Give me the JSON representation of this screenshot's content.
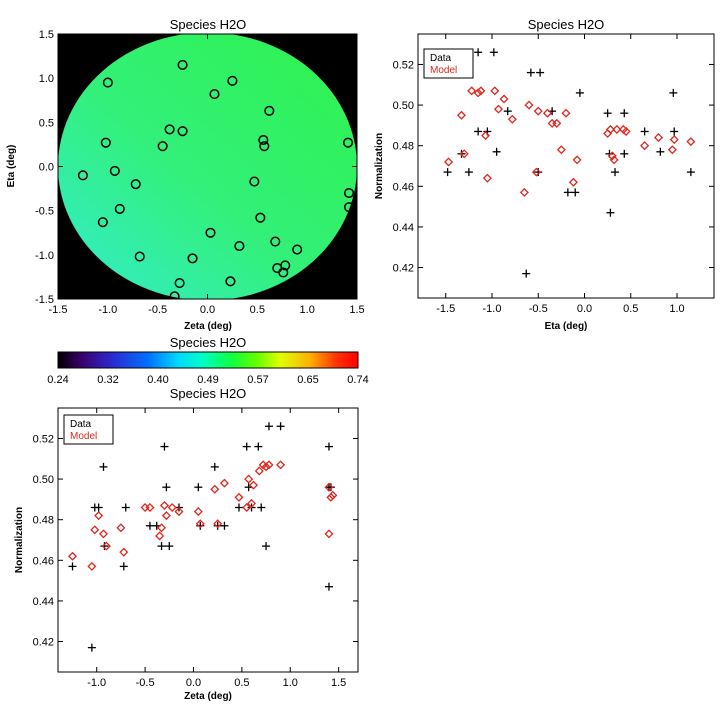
{
  "chart_data": [
    {
      "type": "heatmap",
      "title": "Species H2O",
      "xlabel": "Zeta (deg)",
      "ylabel": "Eta (deg)",
      "xlim": [
        -1.5,
        1.5
      ],
      "ylim": [
        -1.5,
        1.5
      ],
      "xticks": [
        "-1.5",
        "-1.0",
        "-0.5",
        "0.0",
        "0.5",
        "1.0",
        "1.5"
      ],
      "yticks": [
        "-1.5",
        "-1.0",
        "-0.5",
        "0.0",
        "0.5",
        "1.0",
        "1.5"
      ],
      "colors": {
        "background": "#000000",
        "field_high": "#2ef24a",
        "field_low": "#33ecd0",
        "marker": "#000000"
      },
      "stations": [
        [
          -1.25,
          -0.1
        ],
        [
          -1.05,
          -0.63
        ],
        [
          -1.0,
          0.95
        ],
        [
          -1.02,
          0.27
        ],
        [
          -0.93,
          -0.05
        ],
        [
          -0.88,
          -0.48
        ],
        [
          -0.72,
          -0.2
        ],
        [
          -0.68,
          -1.02
        ],
        [
          -0.45,
          0.23
        ],
        [
          -0.38,
          0.42
        ],
        [
          -0.33,
          -1.47
        ],
        [
          -0.28,
          -1.32
        ],
        [
          -0.25,
          0.4
        ],
        [
          -0.25,
          1.15
        ],
        [
          -0.15,
          -1.04
        ],
        [
          0.03,
          -0.75
        ],
        [
          0.07,
          0.82
        ],
        [
          0.23,
          -1.3
        ],
        [
          0.25,
          0.97
        ],
        [
          0.32,
          -0.9
        ],
        [
          0.47,
          -0.17
        ],
        [
          0.53,
          -0.58
        ],
        [
          0.56,
          0.3
        ],
        [
          0.57,
          0.23
        ],
        [
          0.62,
          0.63
        ],
        [
          0.68,
          -0.85
        ],
        [
          0.7,
          -1.15
        ],
        [
          0.76,
          -1.2
        ],
        [
          0.78,
          -1.12
        ],
        [
          0.9,
          -0.94
        ],
        [
          1.41,
          0.27
        ],
        [
          1.42,
          -0.3
        ],
        [
          1.42,
          -0.46
        ]
      ]
    },
    {
      "type": "colorbar",
      "title": "Species H2O",
      "ticks": [
        "0.24",
        "0.32",
        "0.40",
        "0.49",
        "0.57",
        "0.65",
        "0.74"
      ],
      "range": [
        0.24,
        0.74
      ]
    },
    {
      "type": "scatter",
      "title": "Species H2O",
      "xlabel": "Eta (deg)",
      "ylabel": "Normalization",
      "xlim": [
        -1.8,
        1.4
      ],
      "ylim": [
        0.405,
        0.535
      ],
      "xticks": [
        "-1.5",
        "-1.0",
        "-0.5",
        "0.0",
        "0.5",
        "1.0"
      ],
      "yticks": [
        "0.42",
        "0.44",
        "0.46",
        "0.48",
        "0.50",
        "0.52"
      ],
      "legend": {
        "position": "top-left",
        "entries": [
          "Data",
          "Model"
        ]
      },
      "series": [
        {
          "name": "Data",
          "marker": "plus",
          "color": "#000000",
          "points": [
            [
              -1.48,
              0.467
            ],
            [
              -1.33,
              0.476
            ],
            [
              -1.25,
              0.467
            ],
            [
              -1.15,
              0.526
            ],
            [
              -1.15,
              0.487
            ],
            [
              -1.05,
              0.487
            ],
            [
              -0.98,
              0.526
            ],
            [
              -0.95,
              0.477
            ],
            [
              -0.83,
              0.497
            ],
            [
              -0.63,
              0.417
            ],
            [
              -0.58,
              0.516
            ],
            [
              -0.5,
              0.467
            ],
            [
              -0.48,
              0.516
            ],
            [
              -0.35,
              0.497
            ],
            [
              -0.18,
              0.457
            ],
            [
              -0.1,
              0.457
            ],
            [
              -0.05,
              0.506
            ],
            [
              0.25,
              0.496
            ],
            [
              0.27,
              0.476
            ],
            [
              0.28,
              0.447
            ],
            [
              0.33,
              0.467
            ],
            [
              0.43,
              0.496
            ],
            [
              0.43,
              0.476
            ],
            [
              0.65,
              0.487
            ],
            [
              0.82,
              0.477
            ],
            [
              0.96,
              0.506
            ],
            [
              0.97,
              0.487
            ],
            [
              1.15,
              0.467
            ]
          ]
        },
        {
          "name": "Model",
          "marker": "diamond",
          "color": "#e0261d",
          "points": [
            [
              -1.47,
              0.472
            ],
            [
              -1.33,
              0.495
            ],
            [
              -1.3,
              0.476
            ],
            [
              -1.22,
              0.507
            ],
            [
              -1.15,
              0.506
            ],
            [
              -1.12,
              0.507
            ],
            [
              -1.07,
              0.485
            ],
            [
              -1.05,
              0.464
            ],
            [
              -0.97,
              0.507
            ],
            [
              -0.93,
              0.498
            ],
            [
              -0.87,
              0.503
            ],
            [
              -0.78,
              0.493
            ],
            [
              -0.65,
              0.457
            ],
            [
              -0.6,
              0.5
            ],
            [
              -0.52,
              0.467
            ],
            [
              -0.5,
              0.497
            ],
            [
              -0.4,
              0.496
            ],
            [
              -0.35,
              0.491
            ],
            [
              -0.3,
              0.491
            ],
            [
              -0.25,
              0.478
            ],
            [
              -0.2,
              0.496
            ],
            [
              -0.12,
              0.462
            ],
            [
              -0.08,
              0.473
            ],
            [
              0.25,
              0.486
            ],
            [
              0.28,
              0.488
            ],
            [
              0.3,
              0.475
            ],
            [
              0.32,
              0.473
            ],
            [
              0.35,
              0.488
            ],
            [
              0.42,
              0.488
            ],
            [
              0.45,
              0.487
            ],
            [
              0.65,
              0.48
            ],
            [
              0.8,
              0.484
            ],
            [
              0.95,
              0.478
            ],
            [
              0.97,
              0.483
            ],
            [
              1.15,
              0.482
            ]
          ]
        }
      ]
    },
    {
      "type": "scatter",
      "title": "Species H2O",
      "xlabel": "Zeta (deg)",
      "ylabel": "Normalization",
      "xlim": [
        -1.4,
        1.7
      ],
      "ylim": [
        0.405,
        0.535
      ],
      "xticks": [
        "-1.0",
        "-0.5",
        "0.0",
        "0.5",
        "1.0",
        "1.5"
      ],
      "yticks": [
        "0.42",
        "0.44",
        "0.46",
        "0.48",
        "0.50",
        "0.52"
      ],
      "legend": {
        "position": "top-left",
        "entries": [
          "Data",
          "Model"
        ]
      },
      "series": [
        {
          "name": "Data",
          "marker": "plus",
          "color": "#000000",
          "points": [
            [
              -1.25,
              0.457
            ],
            [
              -1.05,
              0.417
            ],
            [
              -1.02,
              0.486
            ],
            [
              -0.98,
              0.486
            ],
            [
              -0.92,
              0.467
            ],
            [
              -0.93,
              0.506
            ],
            [
              -0.72,
              0.457
            ],
            [
              -0.7,
              0.486
            ],
            [
              -0.45,
              0.477
            ],
            [
              -0.38,
              0.477
            ],
            [
              -0.33,
              0.467
            ],
            [
              -0.3,
              0.516
            ],
            [
              -0.28,
              0.496
            ],
            [
              -0.25,
              0.467
            ],
            [
              -0.15,
              0.486
            ],
            [
              0.05,
              0.496
            ],
            [
              0.07,
              0.477
            ],
            [
              0.22,
              0.506
            ],
            [
              0.25,
              0.477
            ],
            [
              0.32,
              0.477
            ],
            [
              0.47,
              0.486
            ],
            [
              0.55,
              0.516
            ],
            [
              0.57,
              0.496
            ],
            [
              0.6,
              0.486
            ],
            [
              0.67,
              0.516
            ],
            [
              0.7,
              0.486
            ],
            [
              0.75,
              0.467
            ],
            [
              0.78,
              0.526
            ],
            [
              0.9,
              0.526
            ],
            [
              1.4,
              0.516
            ],
            [
              1.4,
              0.496
            ],
            [
              1.42,
              0.496
            ],
            [
              1.4,
              0.447
            ]
          ]
        },
        {
          "name": "Model",
          "marker": "diamond",
          "color": "#e0261d",
          "points": [
            [
              -1.25,
              0.462
            ],
            [
              -1.05,
              0.457
            ],
            [
              -1.02,
              0.475
            ],
            [
              -0.98,
              0.482
            ],
            [
              -0.93,
              0.473
            ],
            [
              -0.9,
              0.467
            ],
            [
              -0.75,
              0.476
            ],
            [
              -0.72,
              0.464
            ],
            [
              -0.5,
              0.486
            ],
            [
              -0.45,
              0.486
            ],
            [
              -0.35,
              0.472
            ],
            [
              -0.33,
              0.476
            ],
            [
              -0.3,
              0.487
            ],
            [
              -0.28,
              0.482
            ],
            [
              -0.22,
              0.486
            ],
            [
              -0.15,
              0.484
            ],
            [
              0.05,
              0.484
            ],
            [
              0.07,
              0.478
            ],
            [
              0.22,
              0.495
            ],
            [
              0.25,
              0.478
            ],
            [
              0.32,
              0.498
            ],
            [
              0.47,
              0.491
            ],
            [
              0.55,
              0.486
            ],
            [
              0.57,
              0.5
            ],
            [
              0.6,
              0.488
            ],
            [
              0.62,
              0.497
            ],
            [
              0.68,
              0.504
            ],
            [
              0.72,
              0.507
            ],
            [
              0.75,
              0.506
            ],
            [
              0.78,
              0.507
            ],
            [
              0.9,
              0.507
            ],
            [
              1.4,
              0.496
            ],
            [
              1.42,
              0.491
            ],
            [
              1.44,
              0.492
            ],
            [
              1.4,
              0.473
            ]
          ]
        }
      ]
    }
  ]
}
